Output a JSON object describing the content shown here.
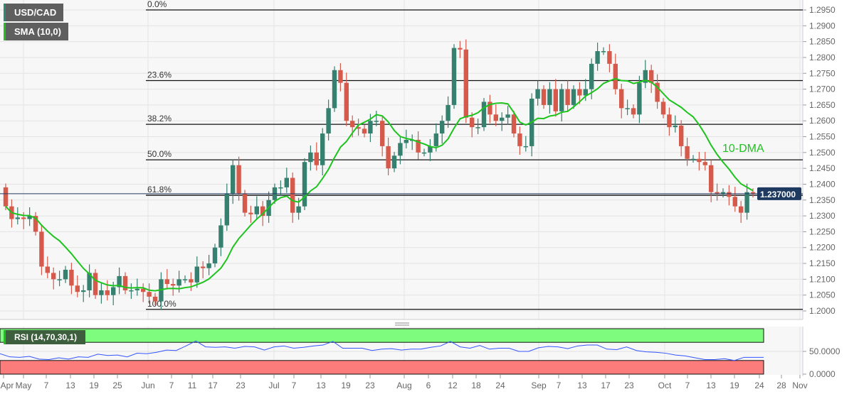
{
  "symbol_label": "USD/CAD",
  "indicator_label": "SMA (10,0)",
  "rsi_label": "RSI (14,70,30,1)",
  "annotation": "10-DMA",
  "current_price": "1.237000",
  "colors": {
    "up": "#35806f",
    "down": "#d65a4b",
    "sma": "#1ec41e",
    "rsi": "#3355ff",
    "overbought": "#7dfc7d",
    "oversold": "#fc7b7b",
    "price_line": "#1f3a60"
  },
  "chart_data": {
    "type": "candlestick",
    "ylim": [
      1.1975,
      1.2975
    ],
    "y_ticks": [
      "1.2000",
      "1.2050",
      "1.2100",
      "1.2150",
      "1.2200",
      "1.2250",
      "1.2300",
      "1.2350",
      "1.2400",
      "1.2450",
      "1.2500",
      "1.2550",
      "1.2600",
      "1.2650",
      "1.2700",
      "1.2750",
      "1.2800",
      "1.2850",
      "1.2900",
      "1.2950"
    ],
    "x_ticks": [
      "Apr",
      "May",
      "7",
      "13",
      "19",
      "25",
      "Jun",
      "7",
      "11",
      "17",
      "23",
      "Jul",
      "7",
      "13",
      "19",
      "23",
      "Aug",
      "6",
      "12",
      "18",
      "24",
      "Sep",
      "7",
      "13",
      "17",
      "23",
      "Oct",
      "7",
      "13",
      "19",
      "24",
      "28",
      "Nov"
    ],
    "first_open": 1.239,
    "closes": [
      1.233,
      1.229,
      1.2295,
      1.229,
      1.23,
      1.225,
      1.214,
      1.212,
      1.21,
      1.21,
      1.213,
      1.208,
      1.206,
      1.2065,
      1.212,
      1.205,
      1.2065,
      1.205,
      1.2075,
      1.211,
      1.2065,
      1.2065,
      1.207,
      1.206,
      1.2045,
      1.203,
      1.21,
      1.2085,
      1.208,
      1.21,
      1.21,
      1.209,
      1.214,
      1.2135,
      1.215,
      1.22,
      1.227,
      1.237,
      1.246,
      1.237,
      1.231,
      1.2305,
      1.233,
      1.23,
      1.235,
      1.239,
      1.239,
      1.242,
      1.231,
      1.233,
      1.247,
      1.25,
      1.246,
      1.256,
      1.264,
      1.276,
      1.272,
      1.26,
      1.258,
      1.2575,
      1.256,
      1.26,
      1.26,
      1.252,
      1.245,
      1.249,
      1.253,
      1.254,
      1.254,
      1.25,
      1.25,
      1.252,
      1.256,
      1.26,
      1.265,
      1.283,
      1.2825,
      1.261,
      1.258,
      1.258,
      1.266,
      1.262,
      1.26,
      1.261,
      1.262,
      1.256,
      1.252,
      1.252,
      1.267,
      1.27,
      1.265,
      1.27,
      1.263,
      1.27,
      1.265,
      1.27,
      1.268,
      1.27,
      1.278,
      1.282,
      1.282,
      1.278,
      1.27,
      1.264,
      1.264,
      1.262,
      1.272,
      1.276,
      1.272,
      1.266,
      1.262,
      1.258,
      1.2585,
      1.252,
      1.248,
      1.248,
      1.247,
      1.246,
      1.2375,
      1.237,
      1.2375,
      1.236,
      1.233,
      1.231,
      1.2375,
      1.237
    ],
    "sma_period": 10,
    "fibonacci": [
      {
        "label": "0.0%",
        "price": 1.295
      },
      {
        "label": "23.6%",
        "price": 1.2727
      },
      {
        "label": "38.2%",
        "price": 1.2589
      },
      {
        "label": "50.0%",
        "price": 1.2477
      },
      {
        "label": "61.8%",
        "price": 1.2365
      },
      {
        "label": "100.0%",
        "price": 1.2005
      }
    ],
    "last_price": 1.237,
    "rsi": {
      "ylim": [
        0,
        100
      ],
      "overbought": 70,
      "oversold": 30,
      "y_ticks": [
        "50.0000",
        "0.0000"
      ],
      "values": [
        45,
        38,
        37,
        39,
        33,
        32,
        36,
        33,
        38,
        37,
        44,
        41,
        42,
        38,
        46,
        45,
        48,
        53,
        52,
        62,
        73,
        60,
        59,
        60,
        57,
        61,
        60,
        53,
        60,
        62,
        57,
        59,
        62,
        64,
        72,
        57,
        57,
        57,
        52,
        55,
        56,
        53,
        55,
        55,
        59,
        62,
        72,
        60,
        57,
        63,
        55,
        57,
        57,
        50,
        50,
        58,
        61,
        60,
        56,
        62,
        64,
        64,
        55,
        54,
        60,
        52,
        49,
        48,
        46,
        42,
        40,
        36,
        32,
        32,
        34,
        30,
        37,
        37,
        37
      ]
    }
  }
}
